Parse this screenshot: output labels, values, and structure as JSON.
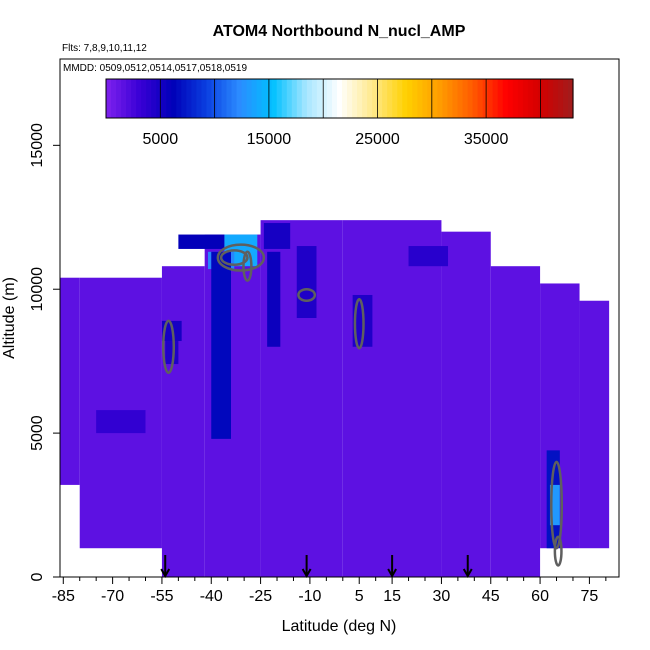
{
  "chart_data": {
    "type": "heatmap",
    "title": "ATOM4 Northbound N_nucl_AMP",
    "subtitle_flights": "Flts: 7,8,9,10,11,12",
    "subtitle_dates": "MMDD: 0509,0512,0514,0517,0518,0519",
    "xlabel": "Latitude (deg N)",
    "ylabel": "Altitude (m)",
    "xlim": [
      -86,
      84
    ],
    "ylim": [
      0,
      18000
    ],
    "x_ticks": [
      -85,
      -70,
      -55,
      -40,
      -25,
      -10,
      5,
      15,
      30,
      45,
      60,
      75
    ],
    "x_tick_labels": [
      "-85",
      "-70",
      "-55",
      "-40",
      "-25",
      "-10",
      "5",
      "15",
      "30",
      "45",
      "60",
      "75"
    ],
    "y_ticks": [
      0,
      5000,
      10000,
      15000
    ],
    "y_tick_labels": [
      "0",
      "5000",
      "10000",
      "15000"
    ],
    "colorbar": {
      "range": [
        0,
        43000
      ],
      "ticks": [
        5000,
        15000,
        25000,
        35000
      ],
      "tick_labels": [
        "5000",
        "15000",
        "25000",
        "35000"
      ],
      "colors": [
        "#7f22ee",
        "#3a00d6",
        "#0000b8",
        "#0a3ee0",
        "#2b8cff",
        "#00c0ff",
        "#a6e6ff",
        "#ffffff",
        "#ffe98a",
        "#ffd000",
        "#ff9d00",
        "#ff5a00",
        "#ff0000",
        "#d40000",
        "#a01c1c"
      ]
    },
    "background_value": 1500,
    "coverage": [
      {
        "lat_from": -86,
        "lat_to": -80,
        "alt_from": 3200,
        "alt_to": 10400
      },
      {
        "lat_from": -80,
        "lat_to": -55,
        "alt_from": 1000,
        "alt_to": 10400
      },
      {
        "lat_from": -55,
        "lat_to": -42,
        "alt_from": 0,
        "alt_to": 10800
      },
      {
        "lat_from": -42,
        "lat_to": -25,
        "alt_from": 0,
        "alt_to": 11900
      },
      {
        "lat_from": -25,
        "lat_to": 0,
        "alt_from": 0,
        "alt_to": 12400
      },
      {
        "lat_from": 0,
        "lat_to": 30,
        "alt_from": 0,
        "alt_to": 12400
      },
      {
        "lat_from": 30,
        "lat_to": 45,
        "alt_from": 0,
        "alt_to": 12000
      },
      {
        "lat_from": 45,
        "lat_to": 60,
        "alt_from": 0,
        "alt_to": 10800
      },
      {
        "lat_from": 60,
        "lat_to": 72,
        "alt_from": 1000,
        "alt_to": 10200
      },
      {
        "lat_from": 72,
        "lat_to": 81,
        "alt_from": 1000,
        "alt_to": 9600
      }
    ],
    "cells": [
      {
        "lat_from": -50,
        "lat_to": -36,
        "alt_from": 11400,
        "alt_to": 11900,
        "value": 6000
      },
      {
        "lat_from": -36,
        "lat_to": -26,
        "alt_from": 10800,
        "alt_to": 11900,
        "value": 14000
      },
      {
        "lat_from": -41,
        "lat_to": -33,
        "alt_from": 10700,
        "alt_to": 11300,
        "value": 12000
      },
      {
        "lat_from": -24,
        "lat_to": -16,
        "alt_from": 11400,
        "alt_to": 12300,
        "value": 5000
      },
      {
        "lat_from": -40,
        "lat_to": -34,
        "alt_from": 4800,
        "alt_to": 11300,
        "value": 6500
      },
      {
        "lat_from": -23,
        "lat_to": -19,
        "alt_from": 8000,
        "alt_to": 11300,
        "value": 5500
      },
      {
        "lat_from": -14,
        "lat_to": -8,
        "alt_from": 9000,
        "alt_to": 11500,
        "value": 4500
      },
      {
        "lat_from": -55,
        "lat_to": -49,
        "alt_from": 8200,
        "alt_to": 8900,
        "value": 5000
      },
      {
        "lat_from": -54,
        "lat_to": -50,
        "alt_from": 7400,
        "alt_to": 8200,
        "value": 4500
      },
      {
        "lat_from": 3,
        "lat_to": 9,
        "alt_from": 8000,
        "alt_to": 9800,
        "value": 4500
      },
      {
        "lat_from": 20,
        "lat_to": 32,
        "alt_from": 10800,
        "alt_to": 11500,
        "value": 4000
      },
      {
        "lat_from": -75,
        "lat_to": -60,
        "alt_from": 5000,
        "alt_to": 5800,
        "value": 3500
      },
      {
        "lat_from": 62,
        "lat_to": 66,
        "alt_from": 1000,
        "alt_to": 4400,
        "value": 7000
      },
      {
        "lat_from": 63,
        "lat_to": 66,
        "alt_from": 1800,
        "alt_to": 3200,
        "value": 13000
      }
    ],
    "contours": [
      {
        "lat": -31,
        "alt": 11100,
        "rx": 7,
        "ry": 450
      },
      {
        "lat": -33,
        "alt": 11100,
        "rx": 4,
        "ry": 250
      },
      {
        "lat": -29,
        "alt": 10800,
        "rx": 1.2,
        "ry": 500
      },
      {
        "lat": -53,
        "alt": 8000,
        "rx": 1.6,
        "ry": 900
      },
      {
        "lat": -11,
        "alt": 9800,
        "rx": 2.5,
        "ry": 200
      },
      {
        "lat": 5,
        "alt": 8800,
        "rx": 1.3,
        "ry": 850
      },
      {
        "lat": 65,
        "alt": 2500,
        "rx": 1.6,
        "ry": 1500
      },
      {
        "lat": 65.5,
        "alt": 900,
        "rx": 1,
        "ry": 500
      }
    ],
    "flight_markers_lat": [
      -54,
      -11,
      15,
      38
    ]
  }
}
